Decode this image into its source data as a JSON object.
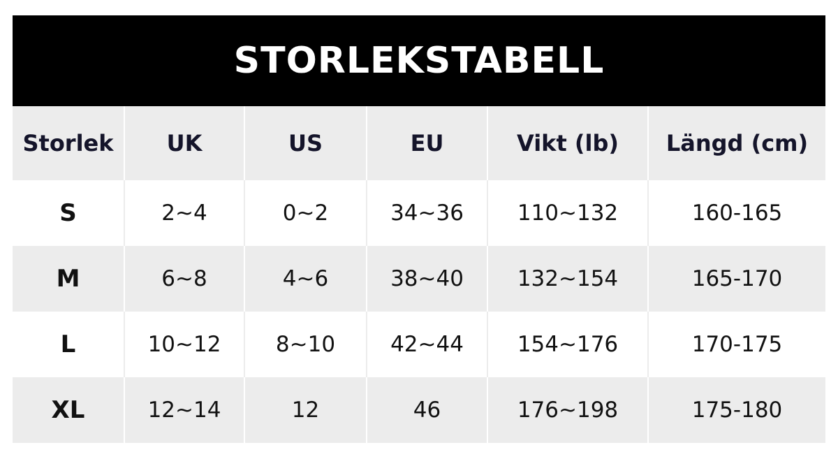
{
  "header": {
    "title": "STORLEKSTABELL"
  },
  "table": {
    "columns": [
      "Storlek",
      "UK",
      "US",
      "EU",
      "Vikt (lb)",
      "Längd (cm)"
    ],
    "rows": [
      [
        "S",
        "2~4",
        "0~2",
        "34~36",
        "110~132",
        "160-165"
      ],
      [
        "M",
        "6~8",
        "4~6",
        "38~40",
        "132~154",
        "165-170"
      ],
      [
        "L",
        "10~12",
        "8~10",
        "42~44",
        "154~176",
        "170-175"
      ],
      [
        "XL",
        "12~14",
        "12",
        "46",
        "176~198",
        "175-180"
      ]
    ]
  }
}
